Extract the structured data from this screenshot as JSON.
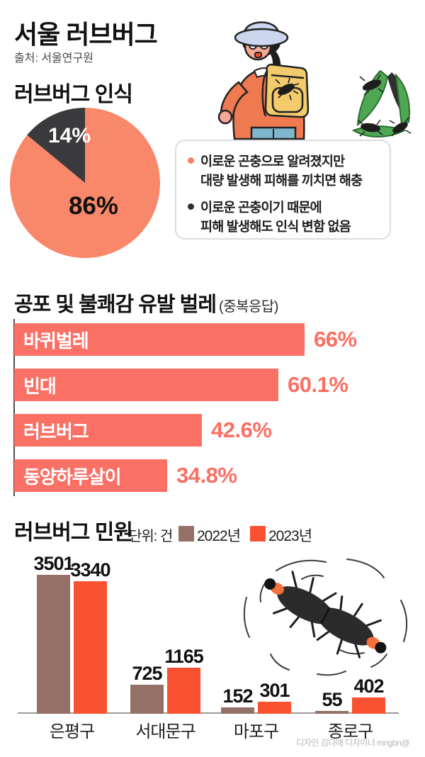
{
  "header": {
    "title": "서울 러브버그",
    "source": "출처: 서울연구원"
  },
  "sections": {
    "perception": {
      "title": "러브버그 인식",
      "notes": [
        {
          "bullet_color": "#f8806a",
          "text": "이로운 곤충으로 알려졌지만\n대량 발생해 피해를 끼치면 해충"
        },
        {
          "bullet_color": "#2f2f2f",
          "text": "이로운 곤충이기 때문에\n피해 발생해도 인식 변함 없음"
        }
      ]
    },
    "fear": {
      "title": "공포 및 불쾌감 유발 벌레",
      "subtitle": "(중복응답)"
    },
    "complaints": {
      "title": "러브버그 민원",
      "unit": "단위: 건",
      "legend": [
        {
          "label": "2022년",
          "color": "#947066"
        },
        {
          "label": "2023년",
          "color": "#fa5230"
        }
      ]
    }
  },
  "chart_data": [
    {
      "type": "pie",
      "labels": [
        "86%",
        "14%"
      ],
      "values": [
        86,
        14
      ],
      "colors": [
        "#f9876a",
        "#3a3a3c"
      ],
      "title": "러브버그 인식"
    },
    {
      "type": "bar",
      "orientation": "horizontal",
      "title": "공포 및 불쾌감 유발 벌레 (중복응답)",
      "categories": [
        "바퀴벌레",
        "빈대",
        "러브버그",
        "동양하루살이"
      ],
      "values": [
        66,
        60.1,
        42.6,
        34.8
      ],
      "value_labels": [
        "66%",
        "60.1%",
        "42.6%",
        "34.8%"
      ],
      "bar_color": "#fb7065",
      "xlim": [
        0,
        66
      ]
    },
    {
      "type": "bar",
      "orientation": "vertical",
      "title": "러브버그 민원",
      "unit": "단위: 건",
      "categories": [
        "은평구",
        "서대문구",
        "마포구",
        "종로구"
      ],
      "series": [
        {
          "name": "2022년",
          "color": "#947066",
          "values": [
            3501,
            725,
            152,
            55
          ]
        },
        {
          "name": "2023년",
          "color": "#fa5230",
          "values": [
            3340,
            1165,
            301,
            402
          ]
        }
      ],
      "ylim": [
        0,
        3501
      ]
    }
  ],
  "illustrations": {
    "hiker": "hiker-with-lovebugs-on-backpack",
    "leaf_bugs": "lovebugs-on-leaf",
    "lovebug_pair": "mating-lovebug-pair"
  },
  "credit": "디자인 김다애 디자이너 mngbn@"
}
